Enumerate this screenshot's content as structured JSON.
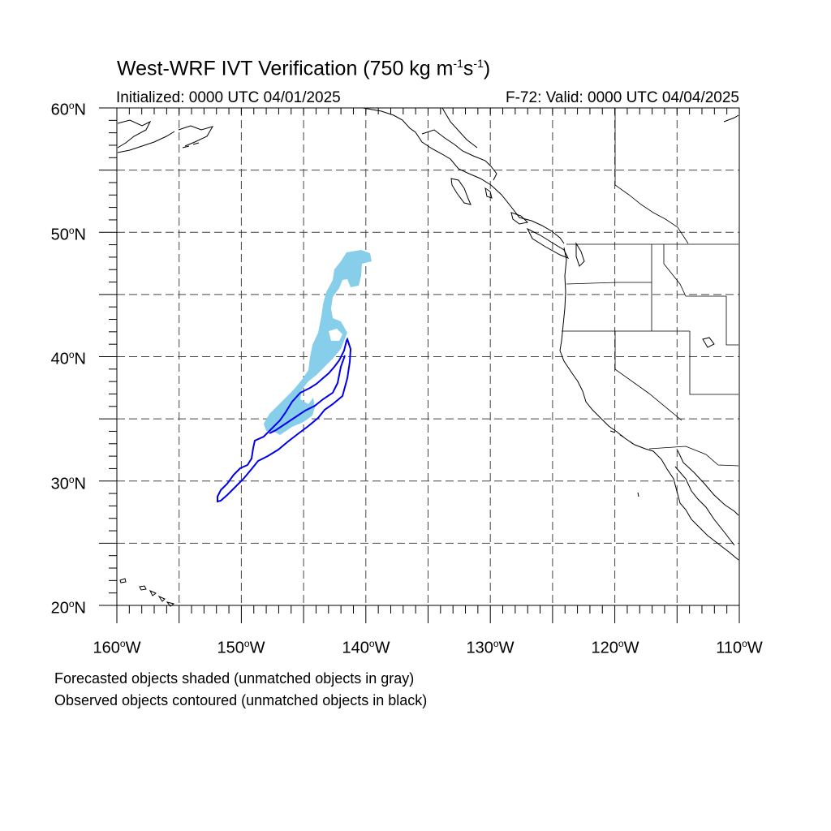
{
  "title": {
    "main": "West-WRF IVT Verification (750 kg m",
    "sup1": "-1",
    "mid": "s",
    "sup2": "-1",
    "end": ")"
  },
  "init_label": "Initialized: 0000 UTC 04/01/2025",
  "valid_label": "F-72: Valid: 0000 UTC 04/04/2025",
  "lat_labels": [
    "60",
    "50",
    "40",
    "30",
    "20"
  ],
  "lat_suffix": "N",
  "lon_labels": [
    "160",
    "150",
    "140",
    "130",
    "120",
    "110"
  ],
  "lon_suffix": "W",
  "degree": "o",
  "notes": [
    "Forecasted objects shaded (unmatched objects in gray)",
    "Observed objects contoured (unmatched objects in black)"
  ],
  "map": {
    "lon_range": [
      -160,
      -110
    ],
    "lat_range": [
      20,
      60
    ],
    "grid_step_deg": 5,
    "forecast_fill_color": "#87ceeb",
    "observed_contour_color": "#0000ee",
    "coast_color": "#000000"
  }
}
